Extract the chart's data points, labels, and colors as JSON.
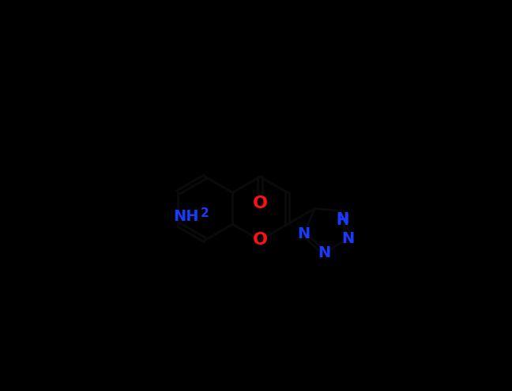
{
  "background_color": "#000000",
  "bond_color": "#0a0a0a",
  "atom_colors": {
    "N": "#1a3aff",
    "O": "#ff1111",
    "NH2": "#1a3aff",
    "NH": "#1a3aff"
  },
  "figsize": [
    6.48,
    4.94
  ],
  "dpi": 100,
  "bond_lw": 2.2,
  "font_size": 14,
  "font_size_sub": 11
}
